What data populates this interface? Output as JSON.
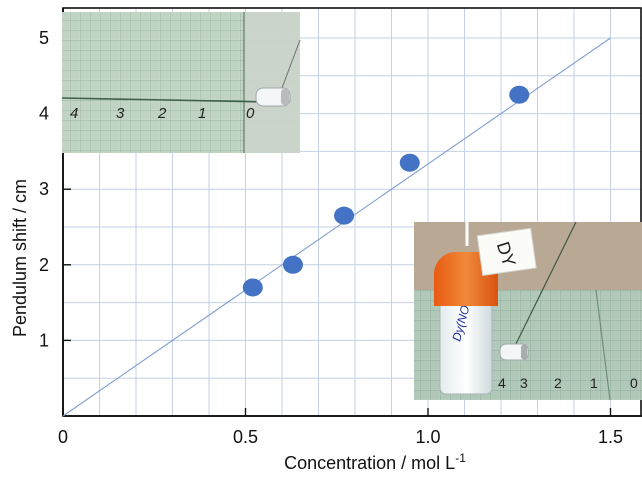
{
  "chart_data": {
    "type": "scatter",
    "xlabel": "Concentration  / mol L",
    "xlabel_sup": "-1",
    "ylabel": "Pendulum shift  / cm",
    "xlim": [
      0,
      1.6
    ],
    "ylim": [
      0,
      5.5
    ],
    "x_ticks": [
      0,
      0.5,
      1.0,
      1.5
    ],
    "x_tick_labels": [
      "0",
      "0.5",
      "1.0",
      "1.5"
    ],
    "y_ticks": [
      1,
      2,
      3,
      4,
      5
    ],
    "y_tick_labels": [
      "1",
      "2",
      "3",
      "4",
      "5"
    ],
    "grid": true,
    "marker_color": "#4472c4",
    "line_color": "#7f9fcf",
    "grid_color": "#c5d1e6",
    "fit_line": {
      "x": [
        0,
        1.5
      ],
      "y": [
        0,
        5.0
      ]
    },
    "points": {
      "x": [
        0.52,
        0.63,
        0.77,
        0.95,
        1.25
      ],
      "y": [
        1.7,
        2.0,
        2.65,
        3.35,
        4.25
      ]
    }
  },
  "insets": [
    {
      "name": "inset-photo-top",
      "scale_labels": [
        "4",
        "3",
        "2",
        "1",
        "0"
      ]
    },
    {
      "name": "inset-photo-bottom",
      "vial_label": "DY",
      "vial_handwriting": "Dy(NO3)3",
      "scale_labels": [
        "4",
        "3",
        "2",
        "1",
        "0"
      ]
    }
  ]
}
